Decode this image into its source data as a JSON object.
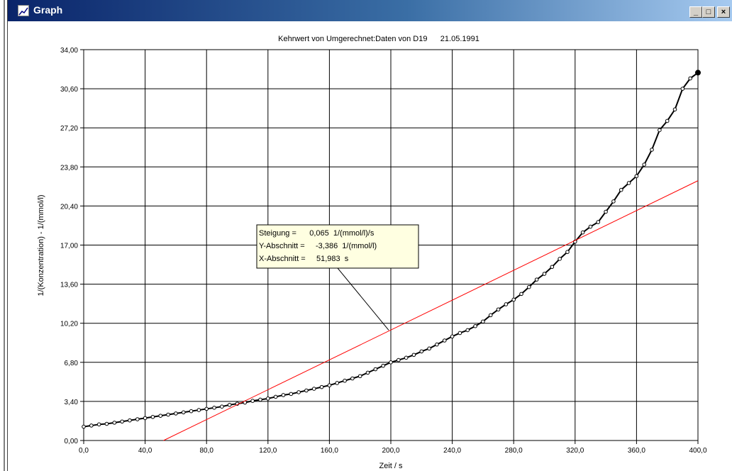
{
  "window": {
    "title": "Graph",
    "icon": "graph-window-icon",
    "buttons": {
      "minimize": "_",
      "maximize": "□",
      "close": "×"
    }
  },
  "chart_data": {
    "type": "line",
    "title": "Kehrwert von Umgerechnet:Daten von D19      21.05.1991",
    "xlabel": "Zeit / s",
    "ylabel": "1/(Konzentration) - 1/(mmol/l)",
    "xlim": [
      0,
      400
    ],
    "ylim": [
      0,
      34
    ],
    "x_ticks": [
      "0,0",
      "40,0",
      "80,0",
      "120,0",
      "160,0",
      "200,0",
      "240,0",
      "280,0",
      "320,0",
      "360,0",
      "400,0"
    ],
    "y_ticks": [
      "0,00",
      "3,40",
      "6,80",
      "10,20",
      "13,60",
      "17,00",
      "20,40",
      "23,80",
      "27,20",
      "30,60",
      "34,00"
    ],
    "grid": true,
    "series": [
      {
        "color": "#000000",
        "marker": "circle",
        "x": [
          0,
          5,
          10,
          15,
          20,
          25,
          30,
          35,
          40,
          45,
          50,
          55,
          60,
          65,
          70,
          75,
          80,
          85,
          90,
          95,
          100,
          105,
          110,
          115,
          120,
          125,
          130,
          135,
          140,
          145,
          150,
          155,
          160,
          165,
          170,
          175,
          180,
          185,
          190,
          195,
          200,
          205,
          210,
          215,
          220,
          225,
          230,
          235,
          240,
          245,
          250,
          255,
          260,
          265,
          270,
          275,
          280,
          285,
          290,
          295,
          300,
          305,
          310,
          315,
          320,
          325,
          330,
          335,
          340,
          345,
          350,
          355,
          360,
          365,
          370,
          375,
          380,
          385,
          390,
          395,
          400
        ],
        "y": [
          1.2,
          1.3,
          1.4,
          1.45,
          1.55,
          1.65,
          1.75,
          1.85,
          1.95,
          2.05,
          2.15,
          2.25,
          2.35,
          2.45,
          2.55,
          2.65,
          2.75,
          2.85,
          2.95,
          3.1,
          3.2,
          3.3,
          3.45,
          3.55,
          3.65,
          3.8,
          3.95,
          4.05,
          4.2,
          4.35,
          4.5,
          4.65,
          4.8,
          5.0,
          5.2,
          5.4,
          5.6,
          5.9,
          6.2,
          6.5,
          6.8,
          7.0,
          7.2,
          7.45,
          7.75,
          8.0,
          8.35,
          8.7,
          9.05,
          9.35,
          9.6,
          9.95,
          10.35,
          10.9,
          11.4,
          11.85,
          12.25,
          12.75,
          13.35,
          14.0,
          14.5,
          15.1,
          15.8,
          16.4,
          17.3,
          18.1,
          18.6,
          19.0,
          19.9,
          20.8,
          21.8,
          22.4,
          23.0,
          24.0,
          25.3,
          27.0,
          27.8,
          28.8,
          30.6,
          31.5,
          32.0
        ]
      },
      {
        "color": "#ff0000",
        "marker": "none",
        "x": [
          51.983,
          400
        ],
        "y": [
          0,
          22.6
        ]
      }
    ],
    "annotation": {
      "lines": [
        "Steigung =      0,065  1/(mmol/l)/s",
        "Y-Abschnitt =     -3,386  1/(mmol/l)",
        "X-Abschnitt =     51,983  s"
      ],
      "pointer_to": [
        200,
        9.6
      ],
      "background": "#ffffe1"
    }
  }
}
